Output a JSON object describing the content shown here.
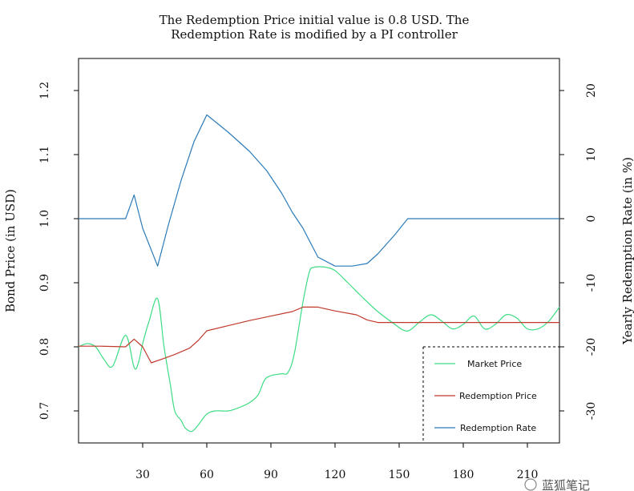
{
  "chart_data": {
    "type": "line",
    "title_lines": [
      "The Redemption Price initial value is 0.8 USD. The",
      "Redemption Rate is modified by a PI controller"
    ],
    "xlabel": "",
    "ylabel_left": "Bond Price (in USD)",
    "ylabel_right": "Yearly Redemption Rate (in %)",
    "xlim": [
      0,
      225
    ],
    "ylim_left": [
      0.65,
      1.25
    ],
    "ylim_right": [
      -35,
      25
    ],
    "x_ticks": [
      30,
      60,
      90,
      120,
      150,
      180,
      210
    ],
    "y_ticks_left": [
      0.7,
      0.8,
      0.9,
      1.0,
      1.1,
      1.2
    ],
    "y_ticks_right": [
      -30,
      -20,
      -10,
      0,
      10,
      20
    ],
    "grid": false,
    "legend_position": "bottom-right",
    "series": [
      {
        "name": "Market Price",
        "axis": "left",
        "color": "#3ddc84",
        "x": [
          0,
          4,
          8,
          12,
          16,
          22,
          26,
          28,
          30,
          33,
          37,
          40,
          43,
          45,
          48,
          50,
          53,
          56,
          60,
          64,
          70,
          75,
          80,
          84,
          87,
          90,
          95,
          98,
          101,
          105,
          108,
          110,
          113,
          116,
          120,
          126,
          132,
          140,
          148,
          152,
          155,
          160,
          165,
          170,
          175,
          180,
          185,
          190,
          195,
          200,
          205,
          210,
          215,
          220,
          225
        ],
        "y": [
          0.8,
          0.805,
          0.8,
          0.78,
          0.77,
          0.818,
          0.768,
          0.775,
          0.805,
          0.84,
          0.875,
          0.8,
          0.74,
          0.7,
          0.685,
          0.673,
          0.668,
          0.678,
          0.695,
          0.7,
          0.7,
          0.705,
          0.713,
          0.725,
          0.748,
          0.755,
          0.758,
          0.76,
          0.79,
          0.87,
          0.917,
          0.924,
          0.925,
          0.924,
          0.919,
          0.9,
          0.88,
          0.855,
          0.835,
          0.826,
          0.826,
          0.84,
          0.85,
          0.84,
          0.828,
          0.835,
          0.848,
          0.828,
          0.835,
          0.85,
          0.845,
          0.828,
          0.828,
          0.84,
          0.862
        ]
      },
      {
        "name": "Redemption Price",
        "axis": "left",
        "color": "#c0392b",
        "x": [
          0,
          10,
          22,
          26,
          30,
          34,
          40,
          45,
          52,
          56,
          60,
          70,
          80,
          90,
          100,
          105,
          112,
          120,
          130,
          135,
          140,
          150,
          160,
          225
        ],
        "y": [
          0.801,
          0.801,
          0.8,
          0.812,
          0.8,
          0.775,
          0.782,
          0.788,
          0.798,
          0.81,
          0.825,
          0.833,
          0.841,
          0.848,
          0.855,
          0.862,
          0.862,
          0.856,
          0.85,
          0.842,
          0.838,
          0.838,
          0.838,
          0.838
        ]
      },
      {
        "name": "Redemption Rate",
        "axis": "right",
        "color": "#2b7bb9",
        "x": [
          0,
          22,
          26,
          30,
          37,
          42,
          48,
          54,
          60,
          70,
          80,
          88,
          95,
          100,
          105,
          112,
          120,
          126,
          128,
          135,
          140,
          148,
          154,
          160,
          225
        ],
        "y": [
          0,
          0,
          3.7,
          -1.5,
          -7.4,
          -1.0,
          6.0,
          12.0,
          16.2,
          13.5,
          10.5,
          7.5,
          4.0,
          1.0,
          -1.5,
          -6.0,
          -7.4,
          -7.4,
          -7.4,
          -7.0,
          -5.5,
          -2.5,
          0,
          0,
          0
        ]
      }
    ]
  },
  "watermark": "蓝狐笔记"
}
